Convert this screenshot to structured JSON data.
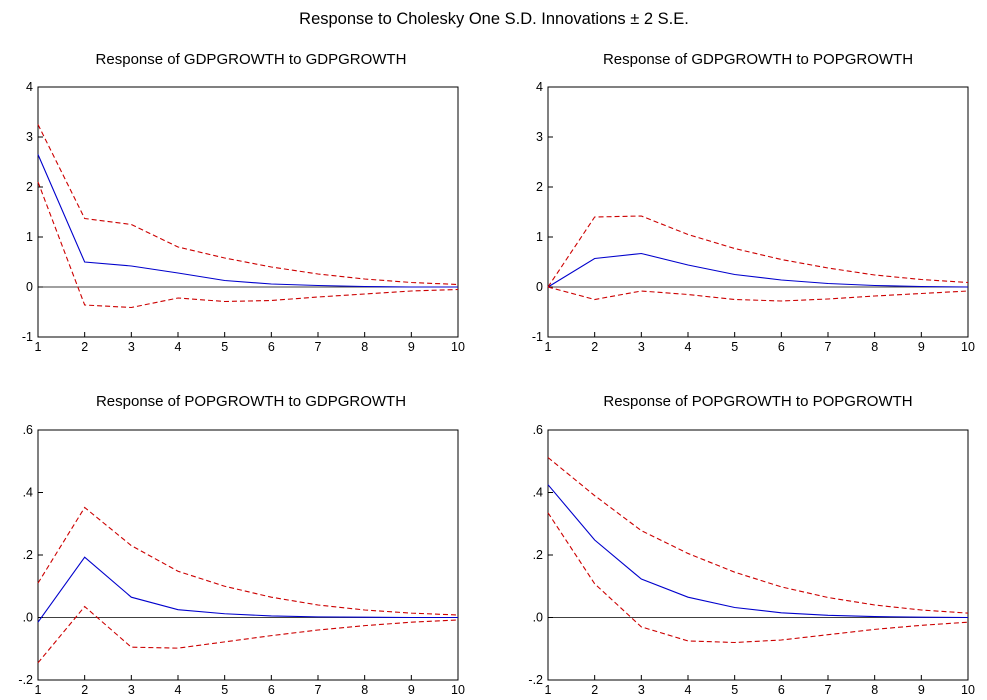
{
  "figure_title": "Response to Cholesky One S.D. Innovations ± 2 S.E.",
  "colors": {
    "response": "#0000cc",
    "bands": "#cc0000",
    "axes": "#000000"
  },
  "chart_data": [
    {
      "type": "line",
      "title": "Response of GDPGROWTH to GDPGROWTH",
      "xlabel": "",
      "ylabel": "",
      "x": [
        1,
        2,
        3,
        4,
        5,
        6,
        7,
        8,
        9,
        10
      ],
      "xlim": [
        1,
        10
      ],
      "ylim": [
        -1,
        4
      ],
      "y_ticks": [
        -1,
        0,
        1,
        2,
        3,
        4
      ],
      "y_tick_labels": [
        "-1",
        "0",
        "1",
        "2",
        "3",
        "4"
      ],
      "x_tick_labels": [
        "1",
        "2",
        "3",
        "4",
        "5",
        "6",
        "7",
        "8",
        "9",
        "10"
      ],
      "series": [
        {
          "role": "response",
          "values": [
            2.65,
            0.5,
            0.42,
            0.28,
            0.13,
            0.06,
            0.03,
            0.01,
            0.0,
            0.0
          ]
        },
        {
          "role": "upper_band",
          "values": [
            3.25,
            1.37,
            1.25,
            0.8,
            0.58,
            0.4,
            0.26,
            0.16,
            0.09,
            0.05
          ]
        },
        {
          "role": "lower_band",
          "values": [
            2.1,
            -0.36,
            -0.41,
            -0.22,
            -0.29,
            -0.27,
            -0.2,
            -0.14,
            -0.08,
            -0.05
          ]
        }
      ]
    },
    {
      "type": "line",
      "title": "Response of GDPGROWTH to POPGROWTH",
      "xlabel": "",
      "ylabel": "",
      "x": [
        1,
        2,
        3,
        4,
        5,
        6,
        7,
        8,
        9,
        10
      ],
      "xlim": [
        1,
        10
      ],
      "ylim": [
        -1,
        4
      ],
      "y_ticks": [
        -1,
        0,
        1,
        2,
        3,
        4
      ],
      "y_tick_labels": [
        "-1",
        "0",
        "1",
        "2",
        "3",
        "4"
      ],
      "x_tick_labels": [
        "1",
        "2",
        "3",
        "4",
        "5",
        "6",
        "7",
        "8",
        "9",
        "10"
      ],
      "series": [
        {
          "role": "response",
          "values": [
            0.0,
            0.57,
            0.67,
            0.44,
            0.25,
            0.14,
            0.07,
            0.03,
            0.01,
            0.0
          ]
        },
        {
          "role": "upper_band",
          "values": [
            0.0,
            1.4,
            1.42,
            1.05,
            0.77,
            0.55,
            0.38,
            0.24,
            0.15,
            0.09
          ]
        },
        {
          "role": "lower_band",
          "values": [
            0.0,
            -0.25,
            -0.08,
            -0.15,
            -0.25,
            -0.28,
            -0.24,
            -0.18,
            -0.13,
            -0.08
          ]
        }
      ]
    },
    {
      "type": "line",
      "title": "Response of POPGROWTH to GDPGROWTH",
      "xlabel": "",
      "ylabel": "",
      "x": [
        1,
        2,
        3,
        4,
        5,
        6,
        7,
        8,
        9,
        10
      ],
      "xlim": [
        1,
        10
      ],
      "ylim": [
        -0.2,
        0.6
      ],
      "y_ticks": [
        -0.2,
        0.0,
        0.2,
        0.4,
        0.6
      ],
      "y_tick_labels": [
        "-.2",
        ".0",
        ".2",
        ".4",
        ".6"
      ],
      "x_tick_labels": [
        "1",
        "2",
        "3",
        "4",
        "5",
        "6",
        "7",
        "8",
        "9",
        "10"
      ],
      "series": [
        {
          "role": "response",
          "values": [
            -0.015,
            0.193,
            0.065,
            0.025,
            0.012,
            0.005,
            0.002,
            0.001,
            0.0,
            0.0
          ]
        },
        {
          "role": "upper_band",
          "values": [
            0.11,
            0.352,
            0.23,
            0.148,
            0.1,
            0.065,
            0.04,
            0.024,
            0.014,
            0.008
          ]
        },
        {
          "role": "lower_band",
          "values": [
            -0.145,
            0.035,
            -0.095,
            -0.098,
            -0.078,
            -0.058,
            -0.04,
            -0.026,
            -0.015,
            -0.008
          ]
        }
      ]
    },
    {
      "type": "line",
      "title": "Response of POPGROWTH to POPGROWTH",
      "xlabel": "",
      "ylabel": "",
      "x": [
        1,
        2,
        3,
        4,
        5,
        6,
        7,
        8,
        9,
        10
      ],
      "xlim": [
        1,
        10
      ],
      "ylim": [
        -0.2,
        0.6
      ],
      "y_ticks": [
        -0.2,
        0.0,
        0.2,
        0.4,
        0.6
      ],
      "y_tick_labels": [
        "-.2",
        ".0",
        ".2",
        ".4",
        ".6"
      ],
      "x_tick_labels": [
        "1",
        "2",
        "3",
        "4",
        "5",
        "6",
        "7",
        "8",
        "9",
        "10"
      ],
      "series": [
        {
          "role": "response",
          "values": [
            0.425,
            0.248,
            0.123,
            0.065,
            0.032,
            0.015,
            0.007,
            0.003,
            0.001,
            0.0
          ]
        },
        {
          "role": "upper_band",
          "values": [
            0.512,
            0.39,
            0.278,
            0.205,
            0.145,
            0.098,
            0.064,
            0.04,
            0.024,
            0.014
          ]
        },
        {
          "role": "lower_band",
          "values": [
            0.335,
            0.108,
            -0.03,
            -0.075,
            -0.08,
            -0.072,
            -0.055,
            -0.038,
            -0.025,
            -0.015
          ]
        }
      ]
    }
  ]
}
